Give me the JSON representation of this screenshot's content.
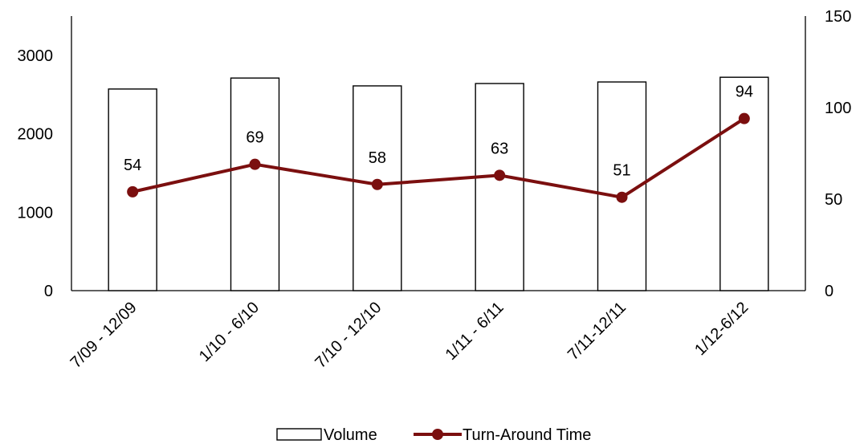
{
  "chart_data": {
    "type": "bar",
    "categories": [
      "7/09 - 12/09",
      "1/10 - 6/10",
      "7/10 - 12/10",
      "1/11 - 6/11",
      "7/11-12/11",
      "1/12-6/12"
    ],
    "series": [
      {
        "name": "Volume",
        "type": "bar",
        "axis": "left",
        "values": [
          2570,
          2710,
          2610,
          2640,
          2660,
          2720
        ]
      },
      {
        "name": "Turn-Around Time",
        "type": "line",
        "axis": "right",
        "values": [
          54,
          69,
          58,
          63,
          51,
          94
        ],
        "data_labels": [
          "54",
          "69",
          "58",
          "63",
          "51",
          "94"
        ]
      }
    ],
    "y_left": {
      "range": [
        0,
        3500
      ],
      "ticks": [
        "0",
        "1000",
        "2000",
        "3000"
      ]
    },
    "y_right": {
      "range": [
        0,
        150
      ],
      "ticks": [
        "0",
        "50",
        "100",
        "150"
      ]
    },
    "title": "",
    "xlabel": "",
    "ylabel": "",
    "grid": false,
    "legend_position": "bottom",
    "colors": {
      "bar_fill": "#ffffff",
      "bar_stroke": "#000000",
      "line": "#7b0f0f",
      "axis": "#000000"
    }
  }
}
